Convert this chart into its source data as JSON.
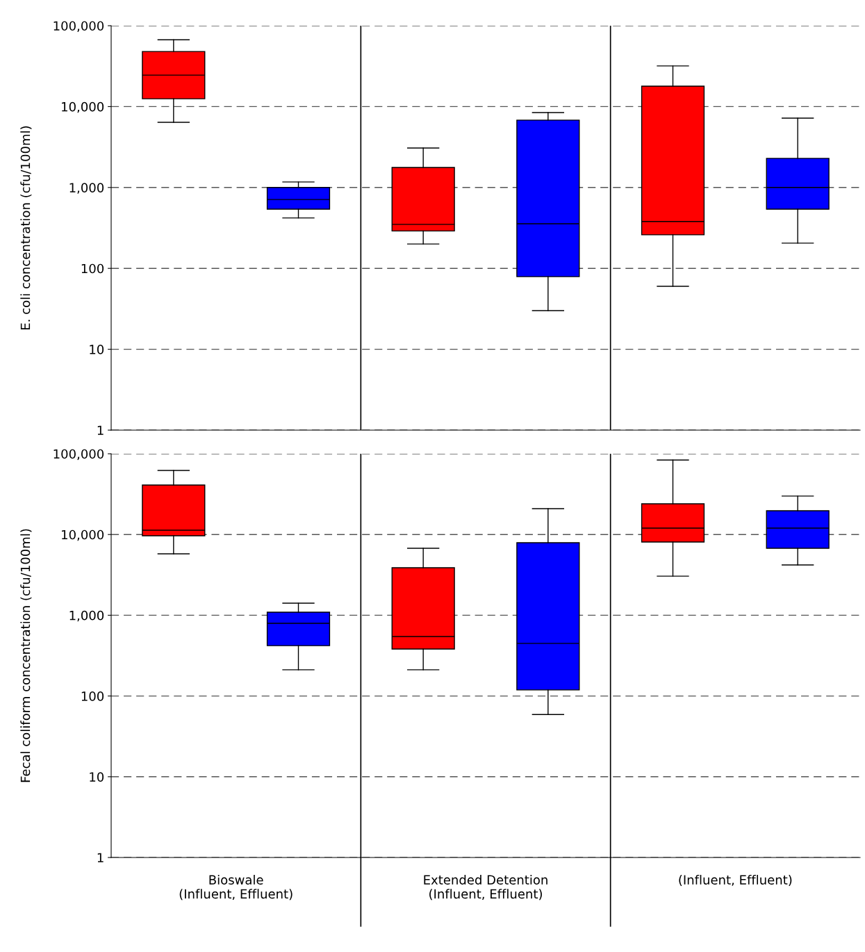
{
  "chart_data": [
    {
      "type": "box",
      "ylabel": "E. coli concentration (cfu/100ml)",
      "categories": [
        null,
        null,
        null
      ],
      "log": true,
      "ylim": [
        1,
        100000
      ],
      "yticks": [
        1,
        10,
        100,
        {
          "value": 1000,
          "label": "1,000"
        },
        {
          "value": 10000,
          "label": "10,000"
        },
        {
          "value": 100000,
          "label": "100,000"
        }
      ],
      "grid": "y",
      "series": [
        {
          "color": "#ff0000",
          "boxes": [
            {
              "low": 6400,
              "q1": 12500,
              "median": 24500,
              "q3": 48000,
              "high": 67000
            },
            {
              "low": 200,
              "q1": 290,
              "median": 350,
              "q3": 1770,
              "high": 3080
            },
            {
              "low": 60,
              "q1": 260,
              "median": 380,
              "q3": 17900,
              "high": 31800
            }
          ]
        },
        {
          "color": "#0000ff",
          "boxes": [
            {
              "low": 420,
              "q1": 540,
              "median": 710,
              "q3": 1000,
              "high": 1170
            },
            {
              "low": 30,
              "q1": 79,
              "median": 356,
              "q3": 6800,
              "high": 8430
            },
            {
              "low": 205,
              "q1": 540,
              "median": 1000,
              "q3": 2290,
              "high": 7200
            }
          ]
        }
      ]
    },
    {
      "type": "box",
      "ylabel": "Fecal coliform concentration (cfu/100ml)",
      "categories": [
        "Bioswale\n(Influent, Effluent)",
        "Extended Detention\n(Influent, Effluent)",
        "(Influent, Effluent)"
      ],
      "log": true,
      "ylim": [
        1,
        100000
      ],
      "yticks": [
        1,
        10,
        100,
        {
          "value": 1000,
          "label": "1,000"
        },
        {
          "value": 10000,
          "label": "10,000"
        },
        {
          "value": 100000,
          "label": "100,000"
        }
      ],
      "grid": "y",
      "series": [
        {
          "color": "#ff0000",
          "boxes": [
            {
              "low": 5770,
              "q1": 9650,
              "median": 11300,
              "q3": 41000,
              "high": 62100
            },
            {
              "low": 211,
              "q1": 382,
              "median": 545,
              "q3": 3880,
              "high": 6760
            },
            {
              "low": 3050,
              "q1": 8070,
              "median": 12000,
              "q3": 24000,
              "high": 83700
            }
          ]
        },
        {
          "color": "#0000ff",
          "boxes": [
            {
              "low": 211,
              "q1": 420,
              "median": 795,
              "q3": 1090,
              "high": 1410
            },
            {
              "low": 59,
              "q1": 119,
              "median": 448,
              "q3": 7910,
              "high": 20900
            },
            {
              "low": 4200,
              "q1": 6760,
              "median": 12000,
              "q3": 19700,
              "high": 29900
            }
          ]
        }
      ]
    }
  ]
}
